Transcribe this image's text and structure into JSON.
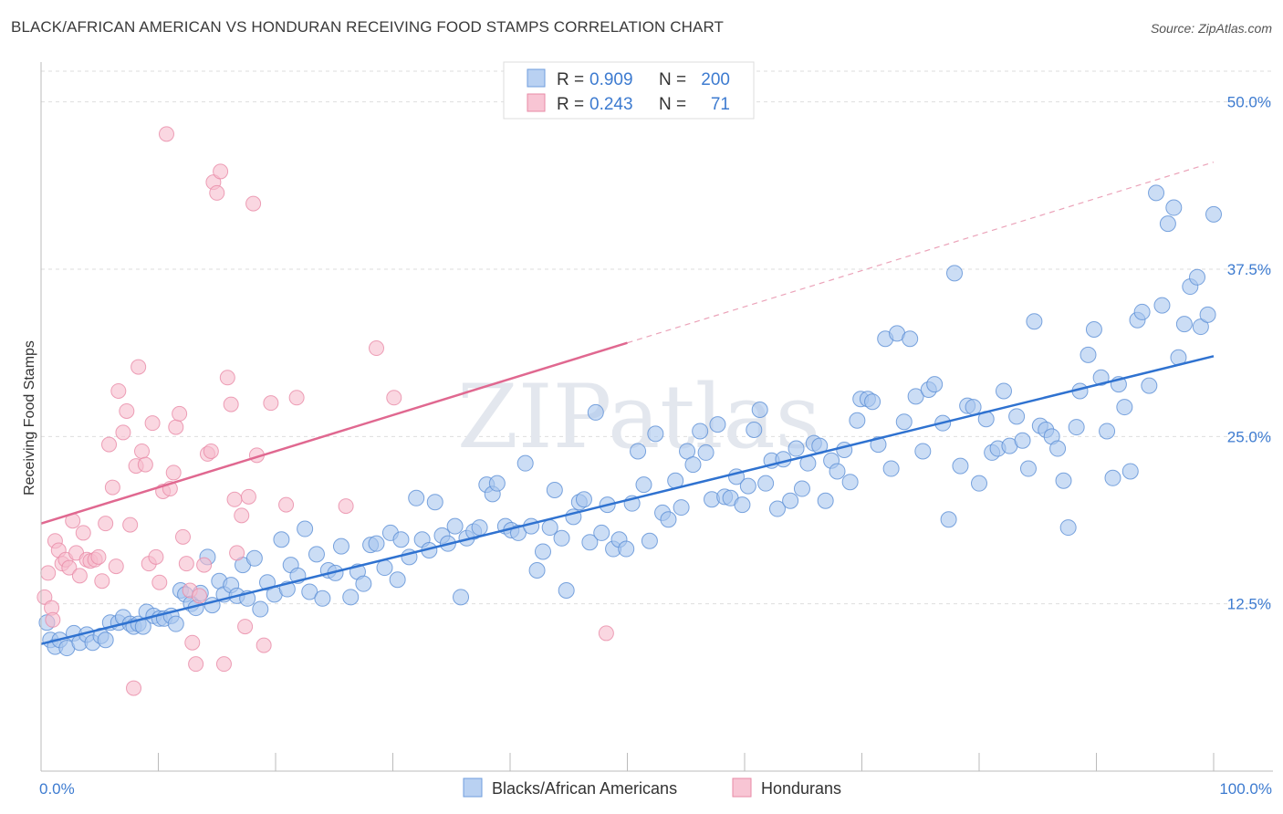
{
  "title": "BLACK/AFRICAN AMERICAN VS HONDURAN RECEIVING FOOD STAMPS CORRELATION CHART",
  "source": "Source: ZipAtlas.com",
  "watermark": "ZIPatlas",
  "colors": {
    "blue": "#5b8fd6",
    "blue_fill": "#a9c7ef",
    "blue_line": "#2f72d0",
    "pink": "#e889a6",
    "pink_fill": "#f6bccd",
    "pink_line": "#e06890",
    "axis_text": "#3d7bd0",
    "grid": "#dddddd"
  },
  "legend": {
    "rows": [
      {
        "r_label": "R =",
        "r_value": "0.909",
        "n_label": "N =",
        "n_value": "200"
      },
      {
        "r_label": "R =",
        "r_value": "0.243",
        "n_label": "N =",
        "n_value": "71"
      }
    ]
  },
  "bottom_legend": [
    "Blacks/African Americans",
    "Hondurans"
  ],
  "chart_data": {
    "type": "scatter",
    "title": "BLACK/AFRICAN AMERICAN VS HONDURAN RECEIVING FOOD STAMPS CORRELATION CHART",
    "ylabel": "Receiving Food Stamps",
    "xlabel": "",
    "xlim": [
      0,
      100
    ],
    "ylim": [
      0,
      52.5
    ],
    "x_tick_labels": [
      "0.0%",
      "100.0%"
    ],
    "y_ticks": [
      12.5,
      25.0,
      37.5,
      50.0
    ],
    "y_tick_labels": [
      "12.5%",
      "25.0%",
      "37.5%",
      "50.0%"
    ],
    "series": [
      {
        "name": "Blacks/African Americans",
        "R": 0.909,
        "N": 200,
        "trend": {
          "x0": 0,
          "y0": 9.5,
          "x1": 100,
          "y1": 31.0
        },
        "points": [
          [
            0.5,
            11.1
          ],
          [
            0.8,
            9.8
          ],
          [
            1.2,
            9.3
          ],
          [
            1.6,
            9.8
          ],
          [
            2.2,
            9.2
          ],
          [
            2.8,
            10.3
          ],
          [
            3.3,
            9.6
          ],
          [
            3.9,
            10.2
          ],
          [
            4.4,
            9.6
          ],
          [
            5.1,
            10.1
          ],
          [
            5.5,
            9.8
          ],
          [
            5.9,
            11.1
          ],
          [
            6.6,
            11.1
          ],
          [
            7.0,
            11.5
          ],
          [
            7.6,
            11.0
          ],
          [
            7.9,
            10.8
          ],
          [
            8.3,
            11.0
          ],
          [
            8.7,
            10.8
          ],
          [
            9.0,
            11.9
          ],
          [
            9.6,
            11.6
          ],
          [
            10.1,
            11.4
          ],
          [
            10.5,
            11.4
          ],
          [
            11.1,
            11.6
          ],
          [
            11.5,
            11.0
          ],
          [
            11.9,
            13.5
          ],
          [
            12.3,
            13.2
          ],
          [
            12.8,
            12.5
          ],
          [
            13.2,
            12.2
          ],
          [
            13.6,
            13.3
          ],
          [
            14.2,
            16.0
          ],
          [
            14.6,
            12.4
          ],
          [
            15.2,
            14.2
          ],
          [
            15.6,
            13.2
          ],
          [
            16.2,
            13.9
          ],
          [
            16.7,
            13.1
          ],
          [
            17.2,
            15.4
          ],
          [
            17.6,
            12.9
          ],
          [
            18.2,
            15.9
          ],
          [
            18.7,
            12.1
          ],
          [
            19.3,
            14.1
          ],
          [
            19.9,
            13.2
          ],
          [
            20.5,
            17.3
          ],
          [
            21.0,
            13.6
          ],
          [
            21.3,
            15.4
          ],
          [
            21.9,
            14.6
          ],
          [
            22.5,
            18.1
          ],
          [
            22.9,
            13.4
          ],
          [
            23.5,
            16.2
          ],
          [
            24.0,
            12.9
          ],
          [
            24.5,
            15.0
          ],
          [
            25.1,
            14.8
          ],
          [
            25.6,
            16.8
          ],
          [
            26.4,
            13.0
          ],
          [
            27.0,
            14.9
          ],
          [
            27.5,
            14.0
          ],
          [
            28.1,
            16.9
          ],
          [
            28.6,
            17.0
          ],
          [
            29.3,
            15.2
          ],
          [
            29.8,
            17.8
          ],
          [
            30.4,
            14.3
          ],
          [
            30.7,
            17.3
          ],
          [
            31.4,
            16.0
          ],
          [
            32.0,
            20.4
          ],
          [
            32.5,
            17.3
          ],
          [
            33.1,
            16.5
          ],
          [
            33.6,
            20.1
          ],
          [
            34.2,
            17.6
          ],
          [
            34.7,
            17.0
          ],
          [
            35.3,
            18.3
          ],
          [
            35.8,
            13.0
          ],
          [
            36.3,
            17.4
          ],
          [
            36.9,
            17.9
          ],
          [
            37.4,
            18.2
          ],
          [
            38.0,
            21.4
          ],
          [
            38.5,
            20.7
          ],
          [
            38.9,
            21.5
          ],
          [
            39.6,
            18.3
          ],
          [
            40.1,
            18.0
          ],
          [
            40.7,
            17.8
          ],
          [
            41.3,
            23.0
          ],
          [
            41.8,
            18.3
          ],
          [
            42.3,
            15.0
          ],
          [
            42.8,
            16.4
          ],
          [
            43.4,
            18.2
          ],
          [
            43.8,
            21.0
          ],
          [
            44.4,
            17.4
          ],
          [
            44.8,
            13.5
          ],
          [
            45.4,
            19.0
          ],
          [
            45.9,
            20.1
          ],
          [
            46.3,
            20.3
          ],
          [
            46.8,
            17.1
          ],
          [
            47.3,
            26.8
          ],
          [
            47.8,
            17.8
          ],
          [
            48.3,
            19.9
          ],
          [
            48.8,
            16.6
          ],
          [
            49.3,
            17.3
          ],
          [
            49.9,
            16.6
          ],
          [
            50.4,
            20.0
          ],
          [
            50.9,
            23.9
          ],
          [
            51.4,
            21.4
          ],
          [
            51.9,
            17.2
          ],
          [
            52.4,
            25.2
          ],
          [
            53.0,
            19.3
          ],
          [
            53.5,
            18.8
          ],
          [
            54.1,
            21.7
          ],
          [
            54.6,
            19.7
          ],
          [
            55.1,
            23.9
          ],
          [
            55.6,
            22.9
          ],
          [
            56.2,
            25.4
          ],
          [
            56.7,
            23.8
          ],
          [
            57.2,
            20.3
          ],
          [
            57.7,
            25.9
          ],
          [
            58.3,
            20.5
          ],
          [
            58.8,
            20.4
          ],
          [
            59.3,
            22.0
          ],
          [
            59.8,
            19.9
          ],
          [
            60.3,
            21.3
          ],
          [
            60.8,
            25.5
          ],
          [
            61.3,
            27.0
          ],
          [
            61.8,
            21.5
          ],
          [
            62.3,
            23.2
          ],
          [
            62.8,
            19.6
          ],
          [
            63.3,
            23.3
          ],
          [
            63.9,
            20.2
          ],
          [
            64.4,
            24.1
          ],
          [
            64.9,
            21.1
          ],
          [
            65.4,
            23.0
          ],
          [
            65.9,
            24.5
          ],
          [
            66.4,
            24.3
          ],
          [
            66.9,
            20.2
          ],
          [
            67.4,
            23.2
          ],
          [
            67.9,
            22.4
          ],
          [
            68.5,
            24.0
          ],
          [
            69.0,
            21.6
          ],
          [
            69.6,
            26.2
          ],
          [
            69.9,
            27.8
          ],
          [
            70.5,
            27.8
          ],
          [
            70.9,
            27.6
          ],
          [
            71.4,
            24.4
          ],
          [
            72.0,
            32.3
          ],
          [
            72.5,
            22.6
          ],
          [
            73.0,
            32.7
          ],
          [
            73.6,
            26.1
          ],
          [
            74.1,
            32.3
          ],
          [
            74.6,
            28.0
          ],
          [
            75.2,
            23.9
          ],
          [
            75.7,
            28.5
          ],
          [
            76.2,
            28.9
          ],
          [
            76.9,
            26.0
          ],
          [
            77.4,
            18.8
          ],
          [
            77.9,
            37.2
          ],
          [
            78.4,
            22.8
          ],
          [
            79.0,
            27.3
          ],
          [
            79.5,
            27.2
          ],
          [
            80.0,
            21.5
          ],
          [
            80.6,
            26.3
          ],
          [
            81.1,
            23.8
          ],
          [
            81.6,
            24.1
          ],
          [
            82.1,
            28.4
          ],
          [
            82.6,
            24.3
          ],
          [
            83.2,
            26.5
          ],
          [
            83.7,
            24.7
          ],
          [
            84.2,
            22.6
          ],
          [
            84.7,
            33.6
          ],
          [
            85.2,
            25.8
          ],
          [
            85.7,
            25.5
          ],
          [
            86.2,
            25.0
          ],
          [
            86.7,
            24.1
          ],
          [
            87.2,
            21.7
          ],
          [
            87.6,
            18.2
          ],
          [
            88.3,
            25.7
          ],
          [
            88.6,
            28.4
          ],
          [
            89.3,
            31.1
          ],
          [
            89.8,
            33.0
          ],
          [
            90.4,
            29.4
          ],
          [
            90.9,
            25.4
          ],
          [
            91.4,
            21.9
          ],
          [
            91.9,
            28.9
          ],
          [
            92.4,
            27.2
          ],
          [
            92.9,
            22.4
          ],
          [
            93.5,
            33.7
          ],
          [
            93.9,
            34.3
          ],
          [
            94.5,
            28.8
          ],
          [
            95.1,
            43.2
          ],
          [
            95.6,
            34.8
          ],
          [
            96.1,
            40.9
          ],
          [
            96.6,
            42.1
          ],
          [
            97.0,
            30.9
          ],
          [
            97.5,
            33.4
          ],
          [
            98.0,
            36.2
          ],
          [
            98.6,
            36.9
          ],
          [
            98.9,
            33.2
          ],
          [
            99.5,
            34.1
          ],
          [
            100.0,
            41.6
          ]
        ]
      },
      {
        "name": "Hondurans",
        "R": 0.243,
        "N": 71,
        "trend": {
          "x0": 0,
          "y0": 18.5,
          "x1": 50,
          "y1": 32.0
        },
        "trend_dashed_to": {
          "x": 100,
          "y": 45.5
        },
        "points": [
          [
            0.3,
            13.0
          ],
          [
            0.6,
            14.8
          ],
          [
            0.9,
            12.2
          ],
          [
            1.2,
            17.2
          ],
          [
            1.5,
            16.5
          ],
          [
            1.8,
            15.5
          ],
          [
            2.1,
            15.8
          ],
          [
            2.4,
            15.2
          ],
          [
            2.7,
            18.7
          ],
          [
            3.0,
            16.3
          ],
          [
            3.3,
            14.6
          ],
          [
            3.6,
            17.8
          ],
          [
            3.9,
            15.8
          ],
          [
            4.2,
            15.7
          ],
          [
            4.6,
            15.8
          ],
          [
            4.9,
            16.0
          ],
          [
            5.2,
            14.2
          ],
          [
            5.5,
            18.5
          ],
          [
            5.8,
            24.4
          ],
          [
            6.1,
            21.2
          ],
          [
            6.4,
            15.3
          ],
          [
            6.6,
            28.4
          ],
          [
            7.0,
            25.3
          ],
          [
            7.3,
            26.9
          ],
          [
            7.6,
            18.4
          ],
          [
            7.9,
            6.2
          ],
          [
            8.1,
            22.8
          ],
          [
            8.3,
            30.2
          ],
          [
            8.6,
            23.9
          ],
          [
            8.9,
            22.9
          ],
          [
            9.2,
            15.5
          ],
          [
            9.5,
            26.0
          ],
          [
            9.8,
            16.0
          ],
          [
            10.1,
            14.1
          ],
          [
            10.4,
            20.9
          ],
          [
            10.7,
            47.6
          ],
          [
            11.0,
            21.1
          ],
          [
            11.3,
            22.3
          ],
          [
            11.5,
            25.7
          ],
          [
            11.8,
            26.7
          ],
          [
            12.1,
            17.5
          ],
          [
            12.4,
            15.5
          ],
          [
            12.7,
            13.5
          ],
          [
            12.9,
            9.6
          ],
          [
            13.2,
            8.0
          ],
          [
            13.5,
            13.1
          ],
          [
            13.9,
            15.4
          ],
          [
            14.2,
            23.7
          ],
          [
            14.5,
            23.9
          ],
          [
            14.7,
            44.0
          ],
          [
            15.0,
            43.2
          ],
          [
            15.3,
            44.8
          ],
          [
            15.6,
            8.0
          ],
          [
            15.9,
            29.4
          ],
          [
            16.2,
            27.4
          ],
          [
            16.5,
            20.3
          ],
          [
            16.7,
            16.3
          ],
          [
            17.1,
            19.1
          ],
          [
            17.4,
            10.8
          ],
          [
            17.7,
            20.5
          ],
          [
            18.1,
            42.4
          ],
          [
            18.4,
            23.6
          ],
          [
            19.0,
            9.4
          ],
          [
            19.6,
            27.5
          ],
          [
            20.9,
            19.9
          ],
          [
            21.8,
            27.9
          ],
          [
            26.0,
            19.8
          ],
          [
            28.6,
            31.6
          ],
          [
            30.1,
            27.9
          ],
          [
            48.2,
            10.3
          ],
          [
            1.0,
            11.3
          ]
        ]
      }
    ]
  }
}
